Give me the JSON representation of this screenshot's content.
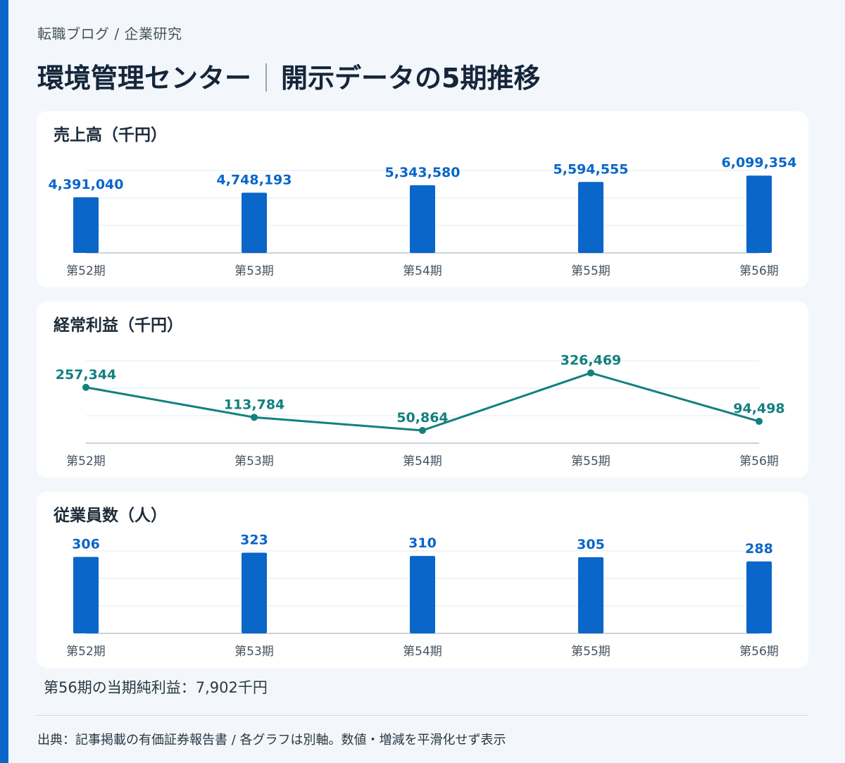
{
  "header": {
    "breadcrumb": "転職ブログ / 企業研究",
    "title_company": "環境管理センター",
    "title_topic": "開示データの5期推移"
  },
  "colors": {
    "accent": "#0a66c8",
    "bar": "#0a66c8",
    "line": "#12807f",
    "bar_label": "#0a66c8",
    "line_label": "#12807f"
  },
  "chart_data": [
    {
      "type": "bar",
      "title": "売上高（千円）",
      "categories": [
        "第52期",
        "第53期",
        "第54期",
        "第55期",
        "第56期"
      ],
      "values": [
        4391040,
        4748193,
        5343580,
        5594555,
        6099354
      ],
      "value_labels": [
        "4,391,040",
        "4,748,193",
        "5,343,580",
        "5,594,555",
        "6,099,354"
      ],
      "ylim": [
        0,
        6500000
      ],
      "grid": true
    },
    {
      "type": "line",
      "title": "経常利益（千円）",
      "categories": [
        "第52期",
        "第53期",
        "第54期",
        "第55期",
        "第56期"
      ],
      "values": [
        257344,
        113784,
        50864,
        326469,
        94498
      ],
      "value_labels": [
        "257,344",
        "113,784",
        "50,864",
        "326,469",
        "94,498"
      ],
      "ylim": [
        -10000,
        385000
      ],
      "grid": true
    },
    {
      "type": "bar",
      "title": "従業員数（人）",
      "categories": [
        "第52期",
        "第53期",
        "第54期",
        "第55期",
        "第56期"
      ],
      "values": [
        306,
        323,
        310,
        305,
        288
      ],
      "value_labels": [
        "306",
        "323",
        "310",
        "305",
        "288"
      ],
      "ylim": [
        0,
        330
      ],
      "grid": true
    }
  ],
  "note": "第56期の当期純利益：7,902千円",
  "footer": "出典：記事掲載の有価証券報告書 / 各グラフは別軸。数値・増減を平滑化せず表示"
}
